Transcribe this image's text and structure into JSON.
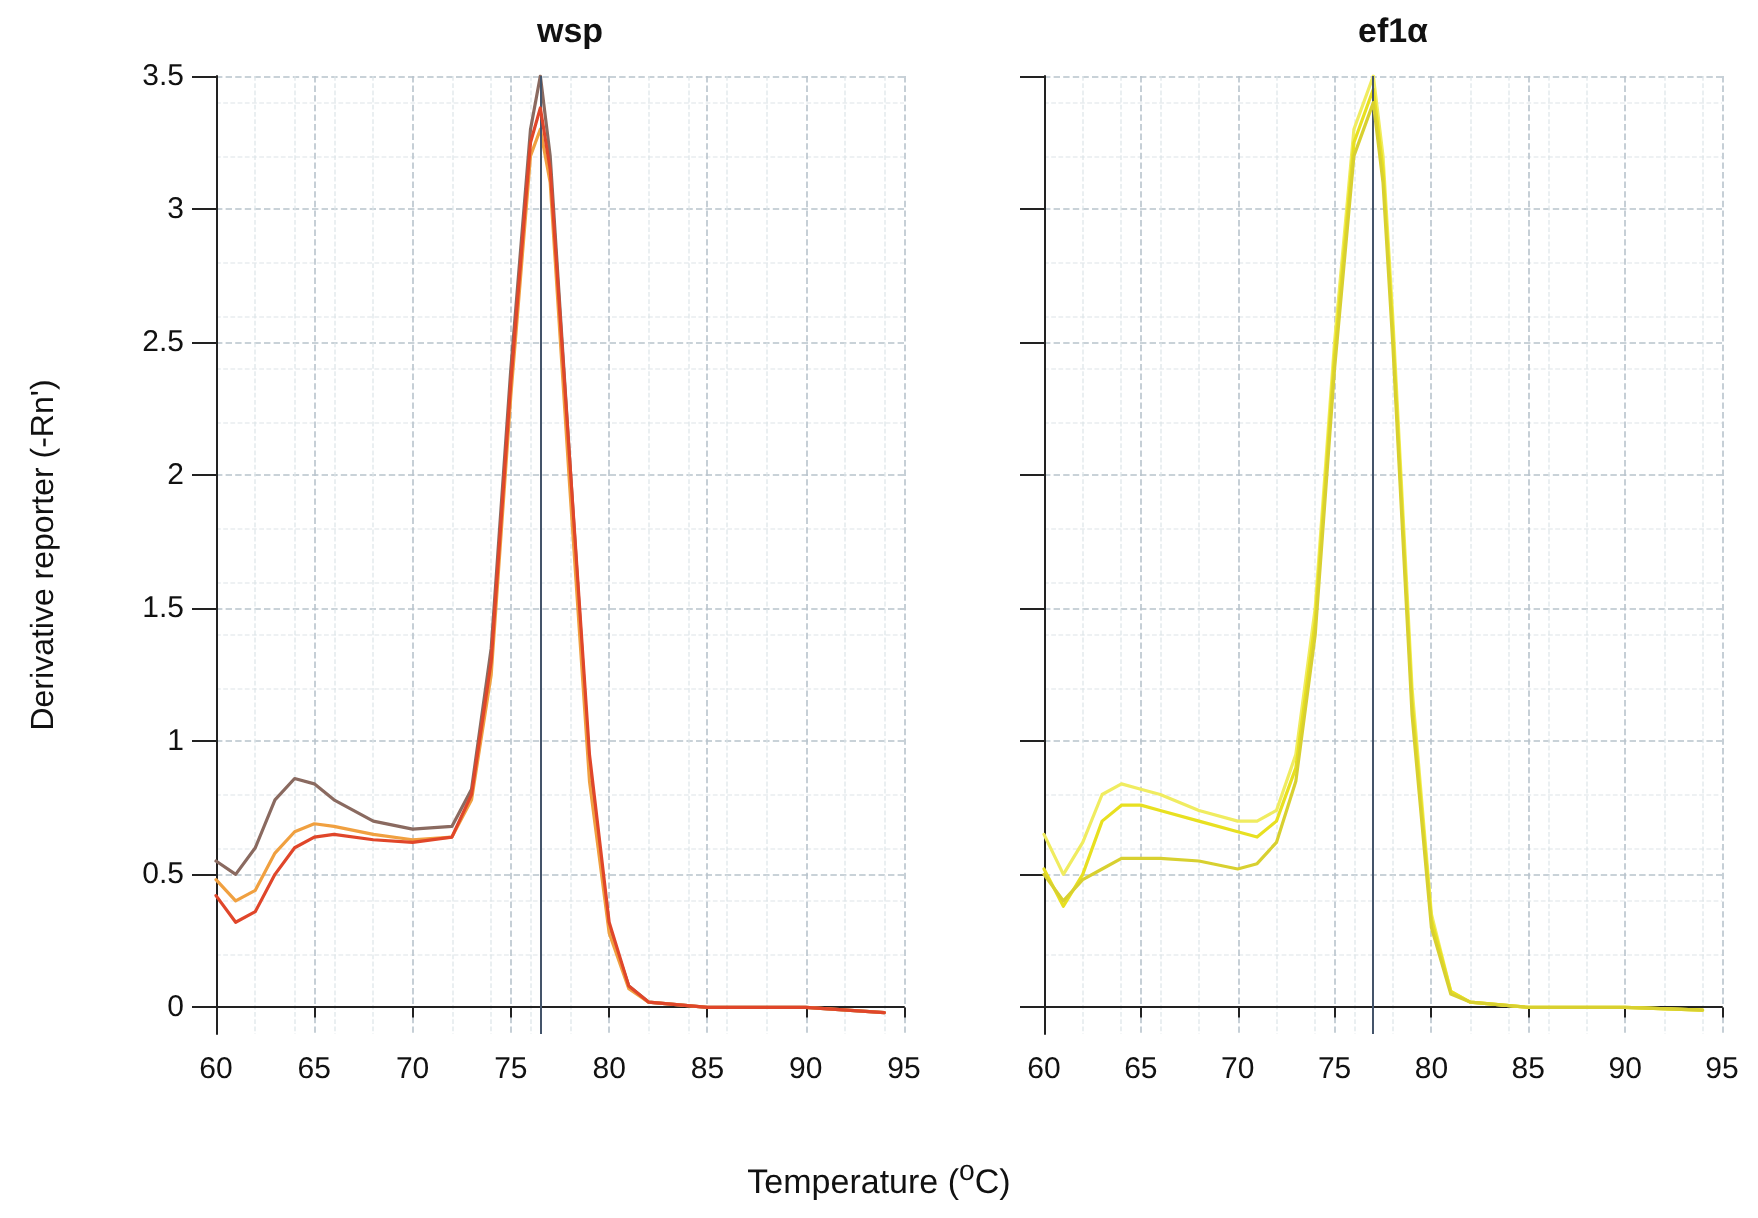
{
  "chart_data": [
    {
      "type": "line",
      "title": "wsp",
      "xlabel": "Temperature ($^{o}$C)",
      "ylabel": "Derivative reporter (-Rn')",
      "xlim": [
        60,
        95
      ],
      "xticks": [
        60,
        65,
        70,
        75,
        80,
        85,
        90,
        95
      ],
      "ylim": [
        -0.1,
        3.5
      ],
      "yticks": [
        0,
        0.5,
        1,
        1.5,
        2,
        2.5,
        3,
        3.5
      ],
      "grid": true,
      "marker": "none",
      "line_style": "solid",
      "x": [
        60,
        61,
        62,
        63,
        64,
        65,
        66,
        68,
        70,
        72,
        73,
        74,
        75,
        76,
        76.5,
        77,
        78,
        79,
        80,
        81,
        82,
        85,
        90,
        94
      ],
      "series": [
        {
          "color": "#8a6a60",
          "values": [
            0.55,
            0.5,
            0.6,
            0.78,
            0.86,
            0.84,
            0.78,
            0.7,
            0.67,
            0.68,
            0.82,
            1.35,
            2.4,
            3.3,
            3.5,
            3.2,
            2.05,
            0.9,
            0.3,
            0.08,
            0.02,
            0,
            0,
            -0.02
          ]
        },
        {
          "color": "#f0a040",
          "values": [
            0.48,
            0.4,
            0.44,
            0.58,
            0.66,
            0.69,
            0.68,
            0.65,
            0.63,
            0.64,
            0.78,
            1.25,
            2.3,
            3.2,
            3.3,
            3.1,
            1.95,
            0.85,
            0.28,
            0.07,
            0.02,
            0,
            0,
            -0.02
          ]
        },
        {
          "color": "#e0462a",
          "values": [
            0.42,
            0.32,
            0.36,
            0.5,
            0.6,
            0.64,
            0.65,
            0.63,
            0.62,
            0.64,
            0.8,
            1.3,
            2.35,
            3.25,
            3.38,
            3.15,
            2.05,
            0.95,
            0.32,
            0.08,
            0.02,
            0,
            0,
            -0.02
          ]
        }
      ],
      "ref_lines": [
        {
          "axis": "x",
          "value": 76.5,
          "color": "#44546a"
        }
      ]
    },
    {
      "type": "line",
      "title": "ef1α",
      "xlim": [
        60,
        95
      ],
      "xticks": [
        60,
        65,
        70,
        75,
        80,
        85,
        90,
        95
      ],
      "ylim": [
        -0.1,
        3.5
      ],
      "yticks": [
        0,
        0.5,
        1,
        1.5,
        2,
        2.5,
        3,
        3.5
      ],
      "tick_labels": "x",
      "grid": true,
      "marker": "none",
      "line_style": "solid",
      "x": [
        60,
        61,
        62,
        63,
        64,
        65,
        66,
        68,
        70,
        71,
        72,
        73,
        74,
        75,
        76,
        77,
        77.5,
        78,
        79,
        80,
        81,
        82,
        85,
        90,
        94
      ],
      "series": [
        {
          "color": "#f0ec60",
          "values": [
            0.65,
            0.5,
            0.62,
            0.8,
            0.84,
            0.82,
            0.8,
            0.74,
            0.7,
            0.7,
            0.74,
            0.95,
            1.5,
            2.5,
            3.3,
            3.5,
            3.2,
            2.6,
            1.2,
            0.35,
            0.06,
            0.02,
            0,
            0,
            -0.01
          ]
        },
        {
          "color": "#e8e020",
          "values": [
            0.52,
            0.38,
            0.5,
            0.7,
            0.76,
            0.76,
            0.74,
            0.7,
            0.66,
            0.64,
            0.7,
            0.9,
            1.45,
            2.45,
            3.25,
            3.45,
            3.15,
            2.55,
            1.15,
            0.33,
            0.06,
            0.02,
            0,
            0,
            -0.01
          ]
        },
        {
          "color": "#d8d030",
          "values": [
            0.5,
            0.4,
            0.48,
            0.52,
            0.56,
            0.56,
            0.56,
            0.55,
            0.52,
            0.54,
            0.62,
            0.85,
            1.4,
            2.4,
            3.2,
            3.4,
            3.1,
            2.5,
            1.1,
            0.3,
            0.05,
            0.02,
            0,
            0,
            -0.01
          ]
        }
      ],
      "ref_lines": [
        {
          "axis": "x",
          "value": 77,
          "color": "#44546a"
        }
      ]
    }
  ]
}
